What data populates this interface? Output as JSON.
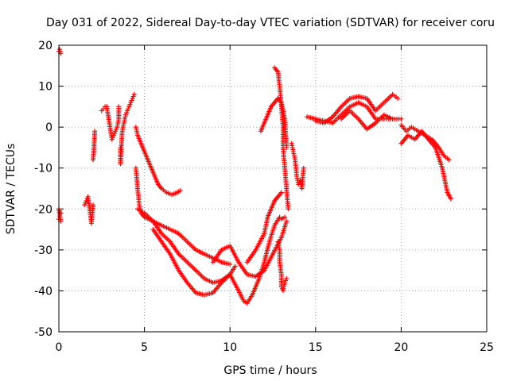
{
  "chart_data": {
    "type": "scatter",
    "title": "Day 031 of 2022, Sidereal Day-to-day VTEC variation (SDTVAR) for receiver coru",
    "xlabel": "GPS time / hours",
    "ylabel": "SDTVAR / TECUs",
    "xlim": [
      0,
      25
    ],
    "ylim": [
      -50,
      20
    ],
    "xticks": [
      "0",
      "5",
      "10",
      "15",
      "20",
      "25"
    ],
    "yticks": [
      "20",
      "10",
      "0",
      "-10",
      "-20",
      "-30",
      "-40",
      "-50"
    ],
    "grid": true,
    "marker": "+",
    "series_color": "#ff0000",
    "series": [
      {
        "name": "s1",
        "points": [
          [
            0.0,
            18.5
          ],
          [
            0.05,
            19.0
          ],
          [
            0.1,
            18.0
          ],
          [
            0.0,
            -22.5
          ],
          [
            0.1,
            -23.0
          ],
          [
            0.0,
            -20.0
          ],
          [
            0.1,
            -21.0
          ]
        ]
      },
      {
        "name": "s2",
        "points": [
          [
            1.5,
            -19
          ],
          [
            1.6,
            -18
          ],
          [
            1.7,
            -17
          ],
          [
            1.8,
            -20
          ],
          [
            1.9,
            -23.5
          ],
          [
            2.0,
            -19
          ],
          [
            2.0,
            -8
          ],
          [
            2.05,
            -5
          ],
          [
            2.1,
            -1
          ]
        ]
      },
      {
        "name": "s3",
        "points": [
          [
            2.5,
            4
          ],
          [
            2.6,
            4.5
          ],
          [
            2.7,
            5
          ],
          [
            2.8,
            5
          ],
          [
            3.1,
            -3
          ],
          [
            3.2,
            -2
          ],
          [
            3.3,
            -1
          ],
          [
            3.4,
            0
          ],
          [
            3.5,
            2
          ],
          [
            3.5,
            5
          ],
          [
            3.6,
            -5
          ],
          [
            3.6,
            -9
          ],
          [
            3.7,
            -1
          ],
          [
            3.8,
            1
          ],
          [
            3.9,
            3
          ],
          [
            4.0,
            4
          ],
          [
            4.1,
            5
          ],
          [
            4.2,
            6
          ],
          [
            4.3,
            7
          ],
          [
            4.4,
            8
          ]
        ]
      },
      {
        "name": "s4",
        "points": [
          [
            4.5,
            0
          ],
          [
            4.6,
            -2
          ],
          [
            4.8,
            -4
          ],
          [
            5.0,
            -6
          ],
          [
            5.2,
            -8
          ],
          [
            5.4,
            -10
          ],
          [
            5.6,
            -12
          ],
          [
            5.8,
            -14
          ],
          [
            6.0,
            -15
          ],
          [
            6.3,
            -16
          ],
          [
            6.6,
            -16.5
          ],
          [
            6.9,
            -16
          ],
          [
            7.1,
            -15.5
          ]
        ]
      },
      {
        "name": "s5",
        "points": [
          [
            4.5,
            -10
          ],
          [
            4.6,
            -15
          ],
          [
            4.7,
            -19
          ],
          [
            4.8,
            -21
          ],
          [
            5.0,
            -22
          ],
          [
            5.5,
            -23
          ],
          [
            6.0,
            -24
          ],
          [
            6.5,
            -25
          ],
          [
            7.0,
            -26
          ],
          [
            7.5,
            -28
          ],
          [
            8.0,
            -30
          ],
          [
            8.5,
            -31
          ],
          [
            9.0,
            -32
          ],
          [
            9.5,
            -33
          ],
          [
            10.0,
            -33.5
          ]
        ]
      },
      {
        "name": "s6",
        "points": [
          [
            4.6,
            -20
          ],
          [
            5.0,
            -21
          ],
          [
            5.5,
            -23
          ],
          [
            6.0,
            -26
          ],
          [
            6.5,
            -28
          ],
          [
            7.0,
            -31
          ],
          [
            7.5,
            -33
          ],
          [
            8.0,
            -35
          ],
          [
            8.5,
            -37
          ],
          [
            9.0,
            -38
          ],
          [
            9.5,
            -37.5
          ],
          [
            10.0,
            -36
          ]
        ]
      },
      {
        "name": "s7",
        "points": [
          [
            5.5,
            -25
          ],
          [
            6.0,
            -28
          ],
          [
            6.5,
            -31
          ],
          [
            7.0,
            -35
          ],
          [
            7.5,
            -38
          ],
          [
            8.0,
            -40.5
          ],
          [
            8.5,
            -41
          ],
          [
            9.0,
            -40.5
          ],
          [
            9.5,
            -38
          ],
          [
            10.0,
            -36
          ],
          [
            10.3,
            -34
          ]
        ]
      },
      {
        "name": "s8",
        "points": [
          [
            9.0,
            -33
          ],
          [
            9.5,
            -30
          ],
          [
            10.0,
            -29
          ],
          [
            10.5,
            -33
          ],
          [
            11.0,
            -36
          ],
          [
            11.5,
            -36.5
          ],
          [
            12.0,
            -35
          ],
          [
            12.5,
            -31
          ],
          [
            13.0,
            -27
          ],
          [
            13.3,
            -23
          ]
        ]
      },
      {
        "name": "s9",
        "points": [
          [
            10.0,
            -36
          ],
          [
            10.5,
            -40
          ],
          [
            10.8,
            -42.5
          ],
          [
            11.0,
            -43
          ],
          [
            11.3,
            -41
          ],
          [
            11.7,
            -37
          ],
          [
            12.0,
            -33
          ],
          [
            12.3,
            -28
          ],
          [
            12.6,
            -24
          ],
          [
            12.9,
            -22
          ],
          [
            13.0,
            -22.5
          ],
          [
            13.2,
            -22
          ]
        ]
      },
      {
        "name": "s10",
        "points": [
          [
            11.0,
            -33
          ],
          [
            11.5,
            -30
          ],
          [
            12.0,
            -26
          ],
          [
            12.2,
            -22
          ],
          [
            12.4,
            -20
          ],
          [
            12.6,
            -18
          ],
          [
            12.8,
            -17
          ],
          [
            13.0,
            -16
          ]
        ]
      },
      {
        "name": "s11",
        "points": [
          [
            11.8,
            -1
          ],
          [
            12.0,
            1
          ],
          [
            12.2,
            3
          ],
          [
            12.4,
            5
          ],
          [
            12.6,
            6
          ],
          [
            12.8,
            7
          ],
          [
            13.0,
            6
          ],
          [
            13.2,
            2
          ],
          [
            13.3,
            -5
          ]
        ]
      },
      {
        "name": "s12",
        "points": [
          [
            12.6,
            14.5
          ],
          [
            12.8,
            13.5
          ],
          [
            12.9,
            10
          ],
          [
            13.0,
            5
          ],
          [
            13.1,
            0
          ],
          [
            13.1,
            -5
          ],
          [
            13.2,
            -10
          ],
          [
            13.3,
            -15
          ],
          [
            13.4,
            -20
          ]
        ]
      },
      {
        "name": "s13",
        "points": [
          [
            12.8,
            -28
          ],
          [
            12.9,
            -30
          ],
          [
            12.9,
            -33
          ],
          [
            13.0,
            -36
          ],
          [
            13.0,
            -39
          ],
          [
            13.1,
            -40
          ],
          [
            13.2,
            -38
          ],
          [
            13.3,
            -37
          ]
        ]
      },
      {
        "name": "s14",
        "points": [
          [
            13.6,
            -4
          ],
          [
            13.7,
            -6
          ],
          [
            13.8,
            -8
          ],
          [
            13.9,
            -12
          ],
          [
            14.0,
            -14
          ],
          [
            14.1,
            -13
          ],
          [
            14.2,
            -15
          ],
          [
            14.3,
            -10
          ]
        ]
      },
      {
        "name": "s15",
        "points": [
          [
            14.5,
            2.5
          ],
          [
            15.0,
            2
          ],
          [
            15.5,
            1.5
          ],
          [
            16.0,
            1
          ],
          [
            16.5,
            3
          ],
          [
            17.0,
            5
          ],
          [
            17.5,
            6
          ],
          [
            18.0,
            5
          ],
          [
            18.5,
            2
          ],
          [
            19.0,
            2
          ],
          [
            19.5,
            2
          ],
          [
            20.0,
            2
          ]
        ]
      },
      {
        "name": "s16",
        "points": [
          [
            15.0,
            1.5
          ],
          [
            15.5,
            1
          ],
          [
            16.0,
            2.5
          ],
          [
            16.5,
            5
          ],
          [
            17.0,
            7
          ],
          [
            17.5,
            7.5
          ],
          [
            18.0,
            7
          ],
          [
            18.5,
            4
          ],
          [
            19.0,
            6
          ],
          [
            19.5,
            8
          ],
          [
            19.8,
            7
          ]
        ]
      },
      {
        "name": "s17",
        "points": [
          [
            16.5,
            2
          ],
          [
            17.0,
            4
          ],
          [
            17.5,
            2
          ],
          [
            18.0,
            -0.5
          ],
          [
            18.5,
            1
          ],
          [
            19.0,
            3
          ],
          [
            19.5,
            2
          ]
        ]
      },
      {
        "name": "s18",
        "points": [
          [
            20.0,
            0.5
          ],
          [
            20.3,
            -1
          ],
          [
            20.6,
            0
          ],
          [
            21.0,
            -1
          ],
          [
            21.4,
            -2
          ],
          [
            21.8,
            -3
          ],
          [
            22.2,
            -5
          ],
          [
            22.5,
            -7
          ],
          [
            22.8,
            -8
          ]
        ]
      },
      {
        "name": "s19",
        "points": [
          [
            20.0,
            -4
          ],
          [
            20.4,
            -2
          ],
          [
            20.8,
            -3
          ],
          [
            21.2,
            -1
          ],
          [
            21.6,
            -3
          ],
          [
            22.0,
            -5
          ],
          [
            22.4,
            -10
          ],
          [
            22.7,
            -16
          ],
          [
            22.9,
            -17.5
          ]
        ]
      }
    ]
  }
}
